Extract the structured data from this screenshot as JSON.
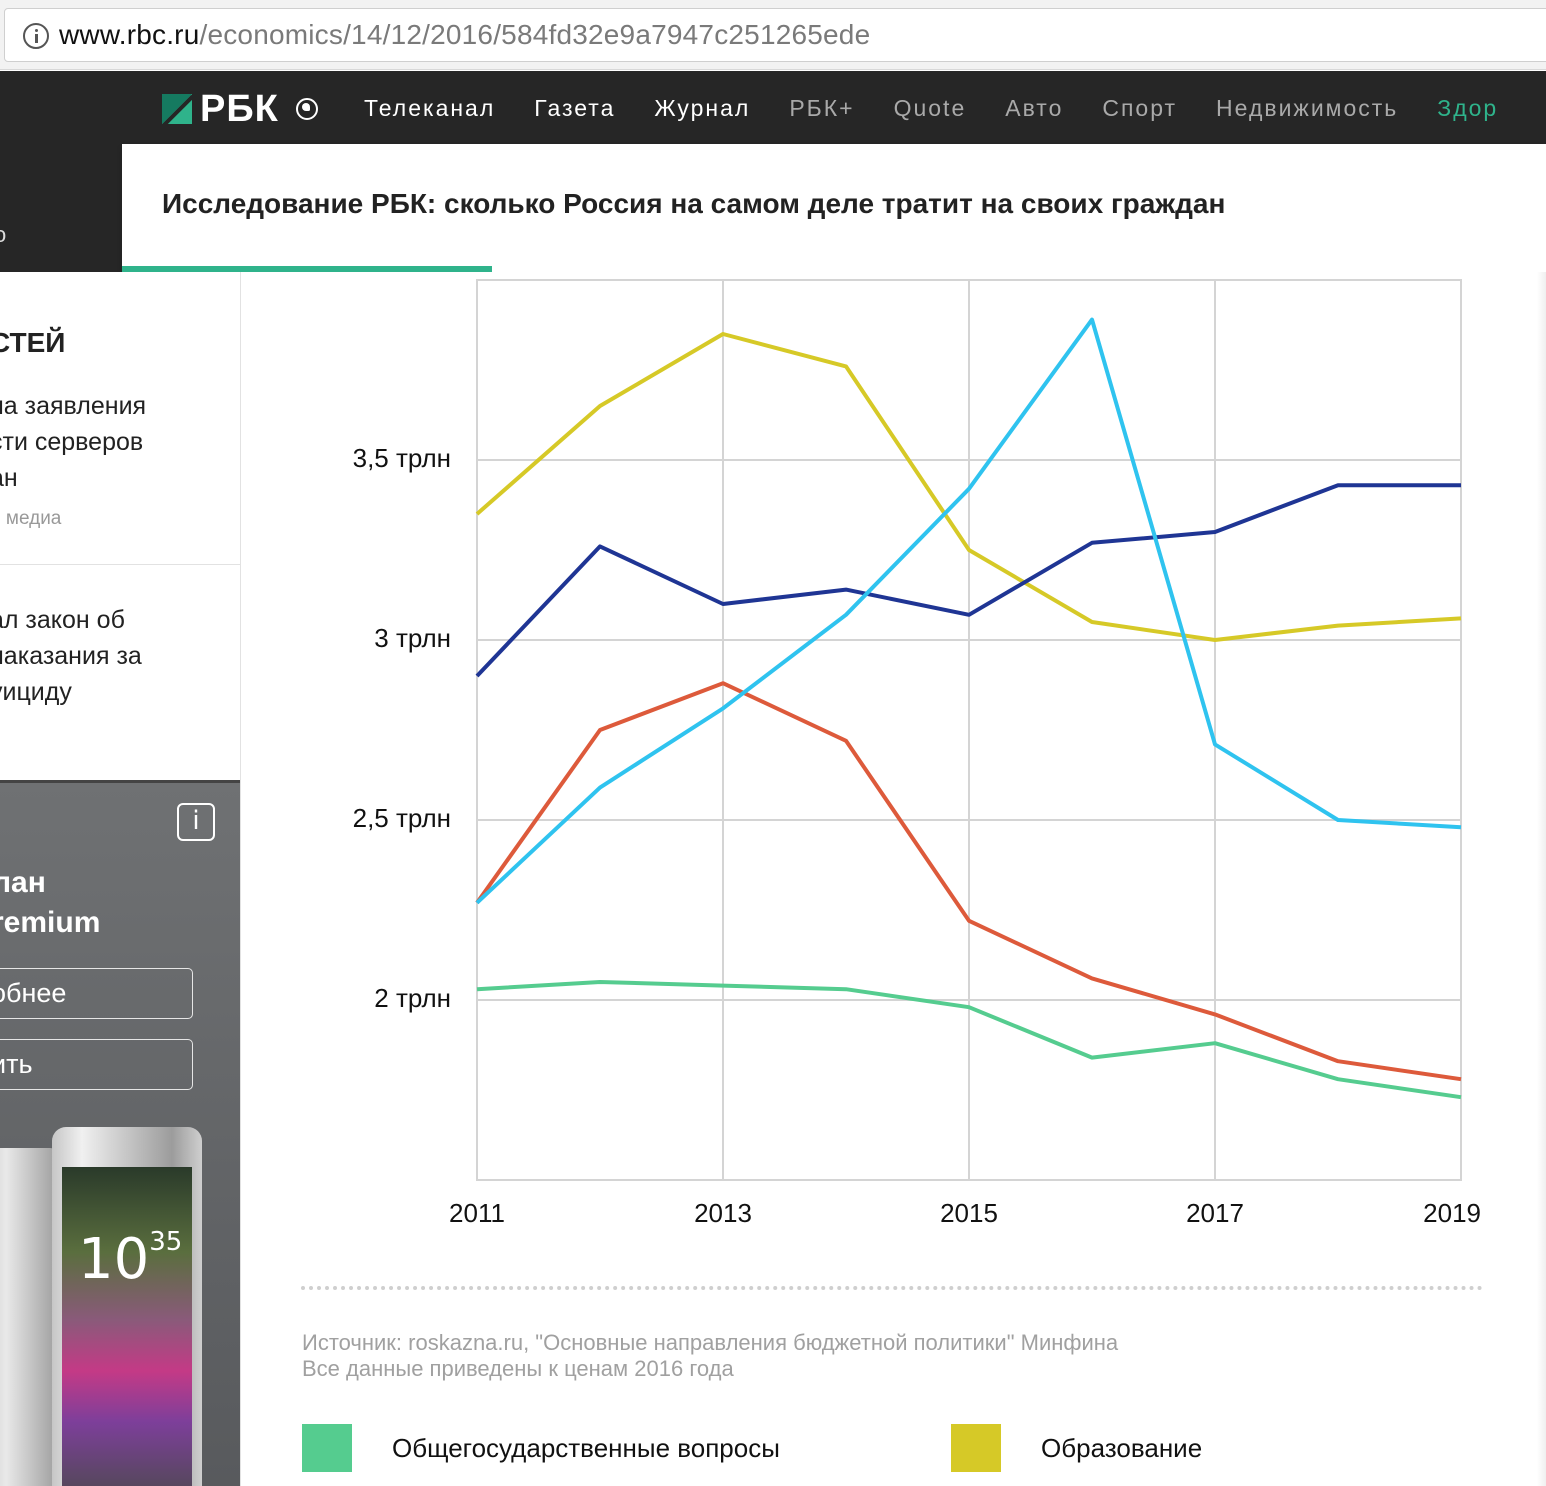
{
  "browser": {
    "url_host": "www.rbc.ru",
    "url_path": "/economics/14/12/2016/584fd32e9a7947c251265ede"
  },
  "site": {
    "logo_text": "РБК",
    "nav": [
      {
        "label": "Телеканал",
        "style": "normal"
      },
      {
        "label": "Газета",
        "style": "normal"
      },
      {
        "label": "Журнал",
        "style": "normal"
      },
      {
        "label": "РБК+",
        "style": "muted"
      },
      {
        "label": "Quote",
        "style": "muted"
      },
      {
        "label": "Авто",
        "style": "muted"
      },
      {
        "label": "Спорт",
        "style": "muted"
      },
      {
        "label": "Недвижимость",
        "style": "muted"
      },
      {
        "label": "Здор",
        "style": "accent"
      }
    ],
    "accent_color": "#2fb38b"
  },
  "article": {
    "left_fragment": "о",
    "title": "Исследование РБК: сколько Россия на самом деле тратит на своих граждан",
    "read_progress": 0.26
  },
  "sidebar": {
    "heading": "стей",
    "news1": [
      "на заявления",
      "сти серверов",
      "ан"
    ],
    "news1_meta": "и медиа",
    "news2": [
      "ал закон об",
      "наказания за",
      "уициду"
    ]
  },
  "ad": {
    "info_label": "i",
    "title_lines": [
      "лан",
      "remium"
    ],
    "button1": "обнее",
    "button2": "ить",
    "phone_time": "10",
    "phone_time_minutes": "35"
  },
  "chart_data": {
    "type": "line",
    "x": [
      2011,
      2012,
      2013,
      2014,
      2015,
      2016,
      2017,
      2018,
      2019
    ],
    "x_tick_labels": [
      "2011",
      "2013",
      "2015",
      "2017",
      "2019"
    ],
    "y_tick_labels": [
      "3,5 трлн",
      "3 трлн",
      "2,5 трлн",
      "2 трлн"
    ],
    "y_ticks": [
      3.5,
      3.0,
      2.5,
      2.0
    ],
    "ylim": [
      1.5,
      4.0
    ],
    "grid": true,
    "series": [
      {
        "name": "Общегосударственные вопросы",
        "color": "#55cc8f",
        "values": [
          2.03,
          2.05,
          2.04,
          2.03,
          1.98,
          1.84,
          1.88,
          1.78,
          1.73
        ]
      },
      {
        "name": "Образование",
        "color": "#d6c927",
        "values": [
          3.35,
          3.65,
          3.85,
          3.76,
          3.25,
          3.05,
          3.0,
          3.04,
          3.06
        ]
      },
      {
        "name": "",
        "color": "#1f3594",
        "values": [
          2.9,
          3.26,
          3.1,
          3.14,
          3.07,
          3.27,
          3.3,
          3.43,
          3.43
        ]
      },
      {
        "name": "",
        "color": "#dd5a3b",
        "values": [
          2.27,
          2.75,
          2.88,
          2.72,
          2.22,
          2.06,
          1.96,
          1.83,
          1.78
        ]
      },
      {
        "name": "",
        "color": "#2fc3ef",
        "values": [
          2.27,
          2.59,
          2.81,
          3.07,
          3.42,
          3.89,
          2.71,
          2.5,
          2.48
        ]
      }
    ],
    "source_lines": [
      "Источник: roskazna.ru, \"Основные направления бюджетной политики\" Минфина",
      "Все данные приведены к ценам 2016 года"
    ]
  }
}
